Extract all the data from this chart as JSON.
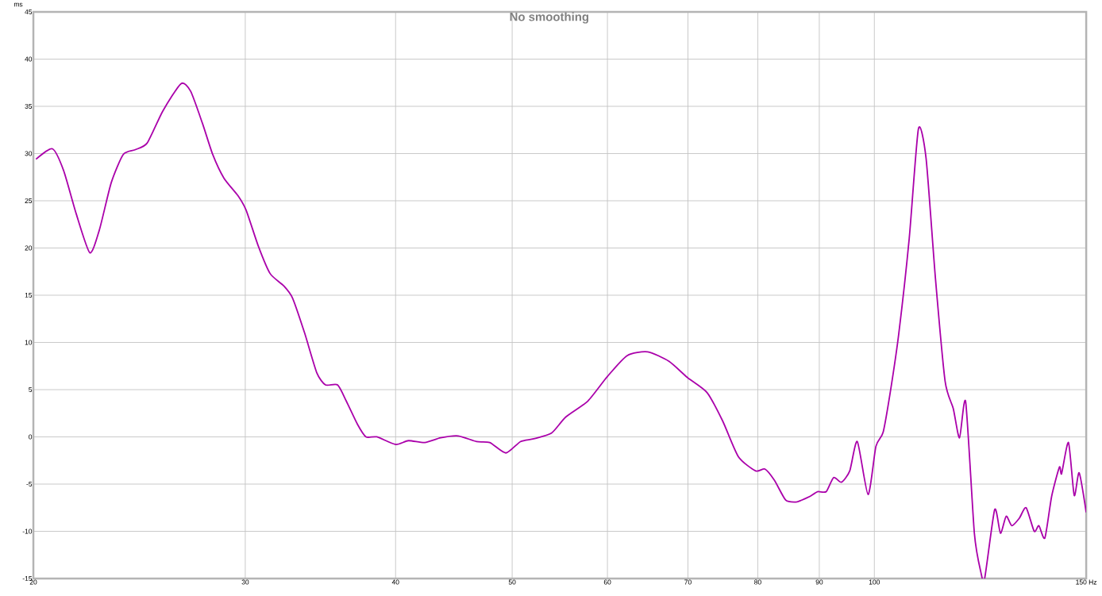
{
  "chart_data": {
    "type": "line",
    "title": "No smoothing",
    "ylabel": "ms",
    "x": [
      20.1,
      20.74,
      21.19,
      21.71,
      22.28,
      22.69,
      23.21,
      23.75,
      24.29,
      24.86,
      25.62,
      26.53,
      27.02,
      27.64,
      28.19,
      28.8,
      29.6,
      30.05,
      30.76,
      31.46,
      32.29,
      32.84,
      33.61,
      34.4,
      34.98,
      35.8,
      36.4,
      37.2,
      37.8,
      38.6,
      40.0,
      41.0,
      42.3,
      43.6,
      45.1,
      46.7,
      47.9,
      49.4,
      50.8,
      52.1,
      53.9,
      55.4,
      57.8,
      60.0,
      62.3,
      64.8,
      67.5,
      69.9,
      72.6,
      74.8,
      77.1,
      79.7,
      81.1,
      82.6,
      84.4,
      86.1,
      87.0,
      88.4,
      89.7,
      91.2,
      92.5,
      93.9,
      95.4,
      96.8,
      98.8,
      100.3,
      101.7,
      103.2,
      104.8,
      106.9,
      108.8,
      110.4,
      112.4,
      114.5,
      116.3,
      117.7,
      119.1,
      121.1,
      122.6,
      123.5,
      125.9,
      127.3,
      128.7,
      130.1,
      132.0,
      133.7,
      135.8,
      137.0,
      138.6,
      140.4,
      142.5,
      143.1,
      145.0,
      146.6,
      148.0,
      150.0
    ],
    "values": [
      29.4,
      30.5,
      28.2,
      23.6,
      19.5,
      21.9,
      26.9,
      29.9,
      30.4,
      31.1,
      34.5,
      37.4,
      36.6,
      33.2,
      29.9,
      27.4,
      25.5,
      24.0,
      20.2,
      17.3,
      16.0,
      14.7,
      11.0,
      6.8,
      5.5,
      5.5,
      3.8,
      1.3,
      0.0,
      0.0,
      -0.8,
      -0.4,
      -0.6,
      -0.1,
      0.1,
      -0.5,
      -0.6,
      -1.7,
      -0.5,
      -0.2,
      0.4,
      2.1,
      3.8,
      6.4,
      8.6,
      9.0,
      8.0,
      6.3,
      4.7,
      1.7,
      -2.1,
      -3.6,
      -3.4,
      -4.6,
      -6.7,
      -6.9,
      -6.7,
      -6.3,
      -5.8,
      -5.8,
      -4.3,
      -4.8,
      -3.6,
      -0.5,
      -6.1,
      -1.0,
      0.5,
      5.1,
      11.0,
      21.0,
      32.6,
      29.5,
      16.8,
      5.9,
      3.0,
      -0.1,
      3.7,
      -10.2,
      -14.3,
      -15.0,
      -7.7,
      -10.2,
      -8.4,
      -9.4,
      -8.6,
      -7.5,
      -10.0,
      -9.4,
      -10.7,
      -6.3,
      -3.2,
      -3.9,
      -0.6,
      -6.2,
      -3.8,
      -8.0
    ],
    "color": "#aa00aa",
    "xlim": [
      20,
      150
    ],
    "ylim": [
      -15,
      45
    ],
    "xticks": [
      20,
      30,
      40,
      50,
      60,
      70,
      80,
      90,
      100,
      {
        "value": 150,
        "label": "150 Hz"
      }
    ],
    "yticks": [
      -15,
      -10,
      -5,
      0,
      5,
      10,
      15,
      20,
      25,
      30,
      35,
      40,
      45
    ],
    "log": "x",
    "grid": true
  }
}
